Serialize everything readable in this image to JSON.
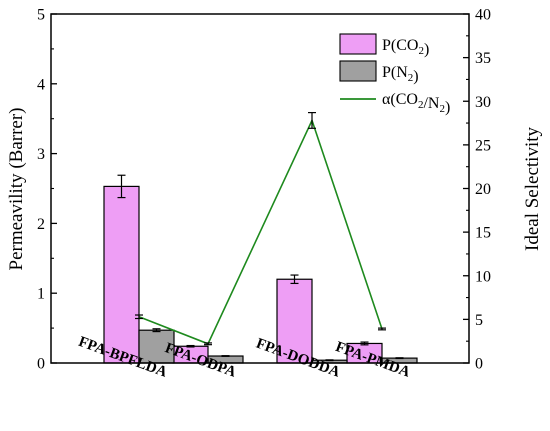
{
  "chart_data": {
    "type": "bar",
    "categories": [
      "FPA-BPFLDA",
      "FPA-ODPA",
      "FPA-DODDA",
      "FPA-PMDA"
    ],
    "series": [
      {
        "name": "P(CO₂)",
        "label_base": "P(CO",
        "label_sub": "2",
        "label_tail": ")",
        "axis": "left",
        "kind": "bar",
        "color": "#ee9ef5",
        "values": [
          2.53,
          0.24,
          1.2,
          0.28
        ],
        "errors": [
          0.16,
          0.01,
          0.06,
          0.02
        ]
      },
      {
        "name": "P(N₂)",
        "label_base": "P(N",
        "label_sub": "2",
        "label_tail": ")",
        "axis": "left",
        "kind": "bar",
        "color": "#a0a0a0",
        "values": [
          0.47,
          0.1,
          0.04,
          0.07
        ],
        "errors": [
          0.02,
          0.005,
          0.005,
          0.005
        ]
      },
      {
        "name": "α(CO₂/N₂)",
        "label_base": "α(CO",
        "label_sub": "2",
        "label_mid": "/N",
        "label_sub2": "2",
        "label_tail": ")",
        "axis": "right",
        "kind": "line",
        "color": "#1e8a1e",
        "values": [
          5.3,
          2.2,
          27.8,
          3.9
        ],
        "errors": [
          0.2,
          0.1,
          0.9,
          0.1
        ]
      }
    ],
    "ylabel": "Permeavility (Barrer)",
    "ylabel_right": "Ideal Selectivity",
    "ylim": [
      0,
      5
    ],
    "ylim_right": [
      0,
      40
    ],
    "yticks": [
      "0",
      "1",
      "2",
      "3",
      "4",
      "5"
    ],
    "yticks_right": [
      "0",
      "5",
      "10",
      "15",
      "20",
      "25",
      "30",
      "35",
      "40"
    ],
    "legend_position": "top-right",
    "grid": false
  }
}
